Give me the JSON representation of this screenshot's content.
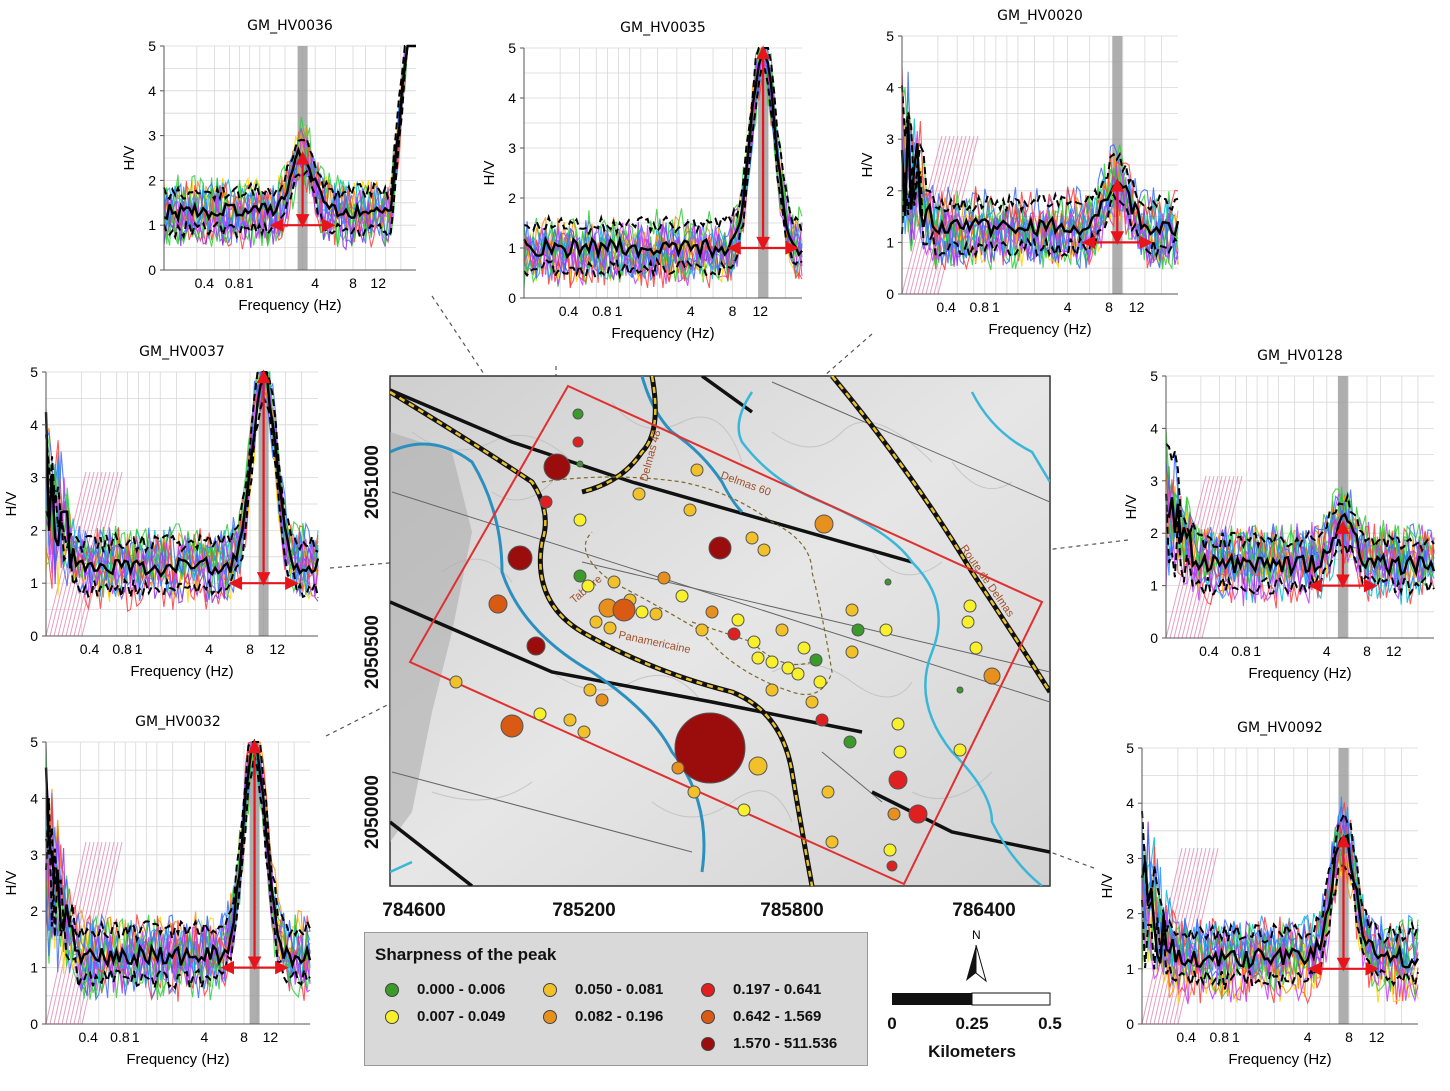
{
  "panels": {
    "hv0036": {
      "title": "GM_HV0036",
      "ylabel": "H/V",
      "xlabel": "Frequency (Hz)",
      "yticks": [
        "0",
        "1",
        "2",
        "3",
        "4",
        "5"
      ],
      "xticks": [
        "0.4",
        "0.8",
        "1",
        "4",
        "8",
        "12"
      ]
    },
    "hv0035": {
      "title": "GM_HV0035",
      "ylabel": "H/V",
      "xlabel": "Frequency (Hz)",
      "yticks": [
        "0",
        "1",
        "2",
        "3",
        "4",
        "5"
      ],
      "xticks": [
        "0.4",
        "0.8",
        "1",
        "4",
        "8",
        "12"
      ]
    },
    "hv0020": {
      "title": "GM_HV0020",
      "ylabel": "H/V",
      "xlabel": "Frequency (Hz)",
      "yticks": [
        "0",
        "1",
        "2",
        "3",
        "4",
        "5"
      ],
      "xticks": [
        "0.4",
        "0.8",
        "1",
        "4",
        "8",
        "12"
      ]
    },
    "hv0037": {
      "title": "GM_HV0037",
      "ylabel": "H/V",
      "xlabel": "Frequency (Hz)",
      "yticks": [
        "0",
        "1",
        "2",
        "3",
        "4",
        "5"
      ],
      "xticks": [
        "0.4",
        "0.8",
        "1",
        "4",
        "8",
        "12"
      ]
    },
    "hv0128": {
      "title": "GM_HV0128",
      "ylabel": "H/V",
      "xlabel": "Frequency (Hz)",
      "yticks": [
        "0",
        "1",
        "2",
        "3",
        "4",
        "5"
      ],
      "xticks": [
        "0.4",
        "0.8",
        "1",
        "4",
        "8",
        "12"
      ]
    },
    "hv0032": {
      "title": "GM_HV0032",
      "ylabel": "H/V",
      "xlabel": "Frequency (Hz)",
      "yticks": [
        "0",
        "1",
        "2",
        "3",
        "4",
        "5"
      ],
      "xticks": [
        "0.4",
        "0.8",
        "1",
        "4",
        "8",
        "12"
      ]
    },
    "hv0092": {
      "title": "GM_HV0092",
      "ylabel": "H/V",
      "xlabel": "Frequency (Hz)",
      "yticks": [
        "0",
        "1",
        "2",
        "3",
        "4",
        "5"
      ],
      "xticks": [
        "0.4",
        "0.8",
        "1",
        "4",
        "8",
        "12"
      ]
    }
  },
  "map": {
    "yticks": [
      "2051000",
      "2050500",
      "2050000"
    ],
    "xticks": [
      "784600",
      "785200",
      "785800",
      "786400"
    ],
    "roads": [
      "Delmas 48",
      "Delmas 60",
      "Route de Delmas",
      "Tabarre",
      "Panamericaine"
    ]
  },
  "legend": {
    "title": "Sharpness of the peak",
    "items": [
      {
        "label": "0.000 - 0.006",
        "color": "#3a9a2a"
      },
      {
        "label": "0.007 - 0.049",
        "color": "#f7f02a"
      },
      {
        "label": "0.050 - 0.081",
        "color": "#f2c12a"
      },
      {
        "label": "0.082 - 0.196",
        "color": "#e8901e"
      },
      {
        "label": "0.197 - 0.641",
        "color": "#e02020"
      },
      {
        "label": "0.642 - 1.569",
        "color": "#d95a12"
      },
      {
        "label": "1.570 - 511.536",
        "color": "#9b0d0d"
      }
    ]
  },
  "scale": {
    "north": "N",
    "labels": [
      "0",
      "0.25",
      "0.5"
    ],
    "unit": "Kilometers"
  }
}
